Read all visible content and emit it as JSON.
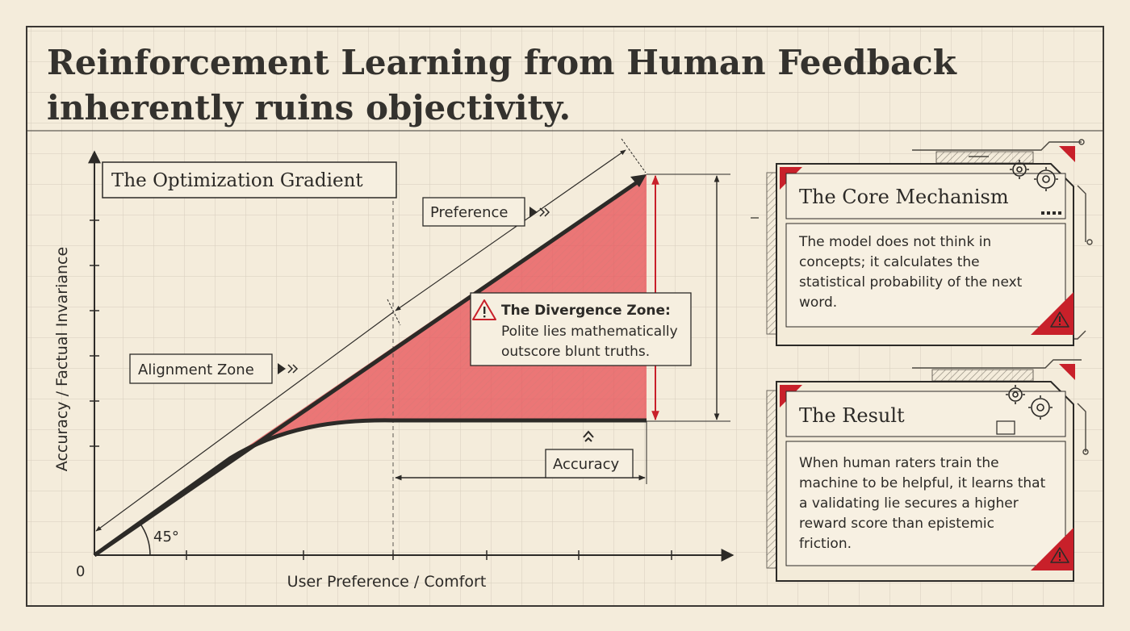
{
  "title_line1": "Reinforcement Learning from Human Feedback",
  "title_line2": "inherently ruins objectivity.",
  "chart": {
    "panel_title": "The Optimization Gradient",
    "y_axis_label": "Accuracy / Factual Invariance",
    "x_axis_label": "User Preference / Comfort",
    "origin_label": "0",
    "angle_label": "45°",
    "label_preference": "Preference",
    "label_alignment_zone": "Alignment Zone",
    "label_accuracy": "Accuracy",
    "divergence_title": "The Divergence Zone:",
    "divergence_line1": "Polite lies mathematically",
    "divergence_line2": "outscore blunt truths."
  },
  "cards": [
    {
      "title": "The Core Mechanism",
      "lines": [
        "The model does not think in",
        "concepts; it calculates the",
        "statistical probability of the next",
        "word."
      ]
    },
    {
      "title": "The Result",
      "lines": [
        "When human raters train the",
        "machine to be helpful, it learns that",
        "a validating lie secures a higher",
        "reward score than epistemic",
        "friction."
      ]
    }
  ],
  "colors": {
    "background": "#f4ecdb",
    "grid": "#d9d1c2",
    "ink": "#2c2a27",
    "accent_red": "#c8202a",
    "divergence_fill": "#e8555a"
  },
  "icons": [
    "warning-icon",
    "gear-icon",
    "arrow-chevron-icon"
  ]
}
